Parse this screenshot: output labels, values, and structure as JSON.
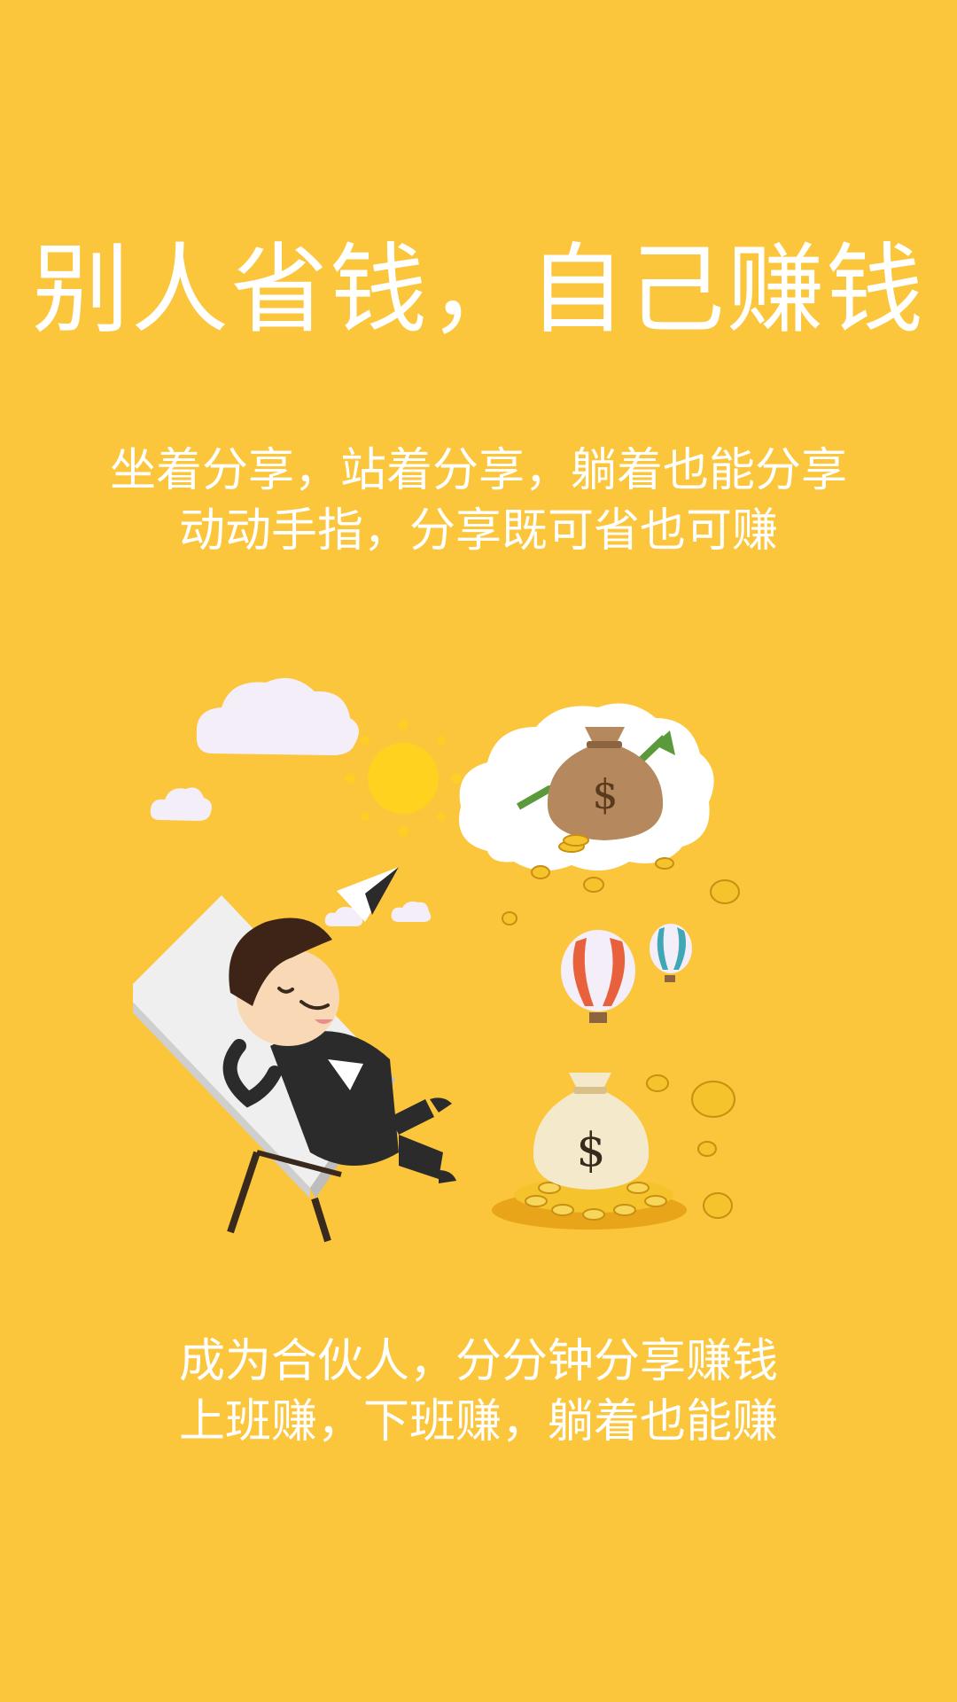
{
  "headline": "别人省钱，自己赚钱",
  "subtitle": {
    "line1": "坐着分享，站着分享，躺着也能分享",
    "line2": "动动手指，分享既可省也可赚"
  },
  "illustration": {
    "money_bag_symbol": "$",
    "icons": [
      "cloud-icon",
      "sun-icon",
      "money-bag-icon",
      "trend-arrow-icon",
      "coin-icon",
      "hot-air-balloon-icon",
      "paper-plane-icon",
      "lounge-chair-icon",
      "relaxing-man-icon",
      "coin-pile-icon"
    ],
    "colors": {
      "background": "#FBC53C",
      "cloud": "#F4EEF8",
      "sun": "#FFD21F",
      "bag": "#B5885E",
      "arrow": "#5A9A3A",
      "coin": "#F5C32C",
      "suit": "#2B2B2B",
      "hair": "#3E2416"
    }
  },
  "footer": {
    "line1": "成为合伙人，分分钟分享赚钱",
    "line2": "上班赚，下班赚，躺着也能赚"
  }
}
